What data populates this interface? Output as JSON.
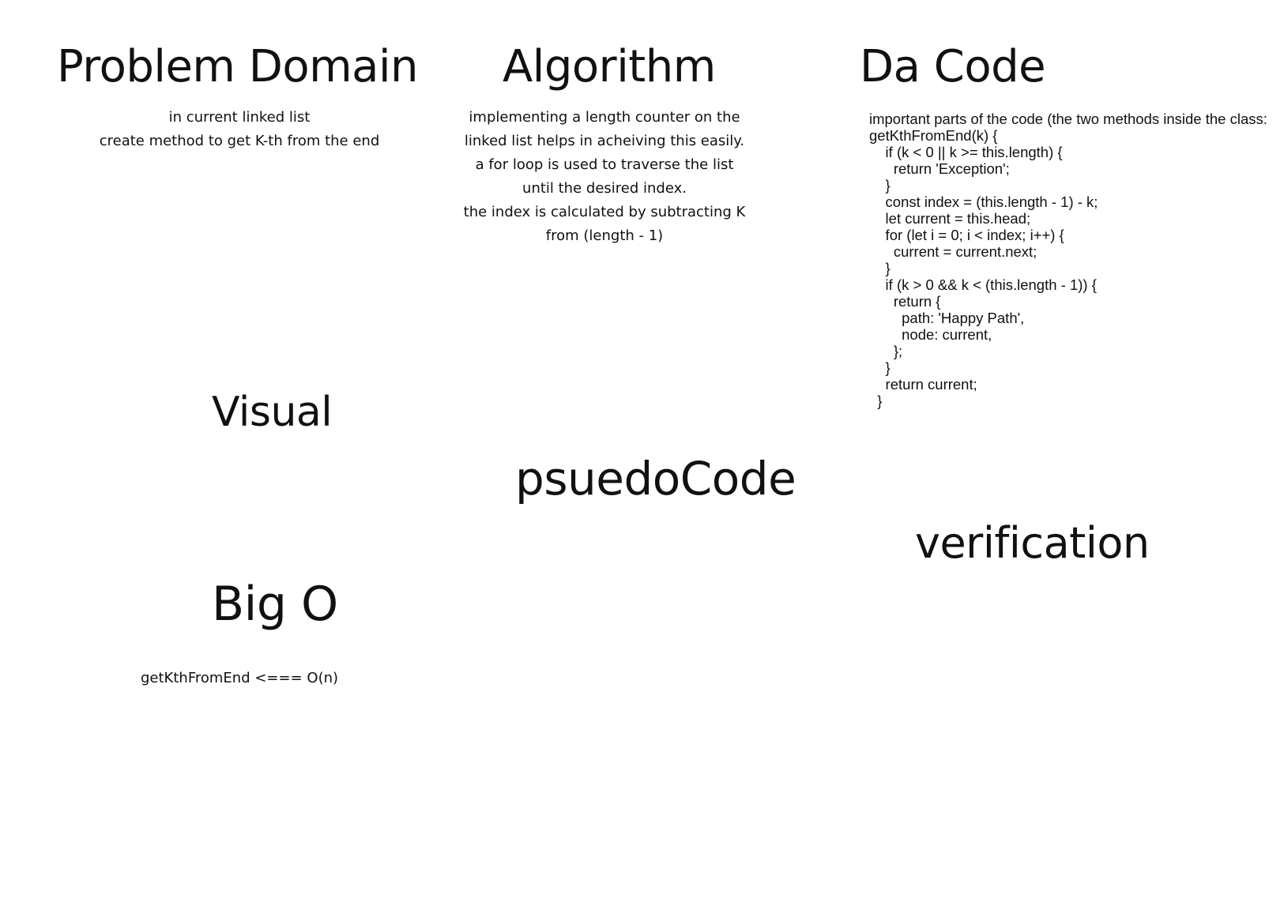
{
  "sections": {
    "problem_domain": {
      "title": "Problem Domain",
      "lines": [
        "in current linked list",
        "create method to get K-th from the end"
      ]
    },
    "algorithm": {
      "title": "Algorithm",
      "lines": [
        "implementing a length counter on the",
        "linked list helps in acheiving this easily.",
        "a for loop is used to traverse the list",
        "until the desired index.",
        "the index is calculated by subtracting K",
        "from (length - 1)"
      ]
    },
    "code": {
      "title": "Da Code",
      "intro": "important parts of the code (the two methods inside the class:",
      "lines": [
        "getKthFromEnd(k) {",
        "    if (k < 0 || k >= this.length) {",
        "      return 'Exception';",
        "    }",
        "    const index = (this.length - 1) - k;",
        "    let current = this.head;",
        "",
        "    for (let i = 0; i < index; i++) {",
        "      current = current.next;",
        "    }",
        "",
        "    if (k > 0 && k < (this.length - 1)) {",
        "      return {",
        "        path: 'Happy Path',",
        "        node: current,",
        "      };",
        "    }",
        "",
        "    return current;",
        "  }"
      ]
    },
    "visual": {
      "title": "Visual"
    },
    "pseudocode": {
      "title": "psuedoCode"
    },
    "verification": {
      "title": "verification"
    },
    "big_o": {
      "title": "Big O",
      "line": "getKthFromEnd <=== O(n)"
    }
  }
}
